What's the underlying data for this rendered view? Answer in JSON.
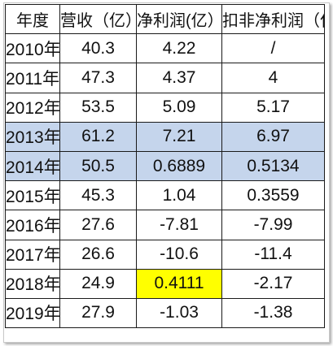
{
  "table": {
    "headers": [
      "年度",
      "营收（亿）",
      "净利润(亿）",
      "扣非净利润（亿）"
    ],
    "rows": [
      {
        "year": "2010年",
        "revenue": "40.3",
        "net_profit": "4.22",
        "deducted_net_profit": "/"
      },
      {
        "year": "2011年",
        "revenue": "47.3",
        "net_profit": "4.37",
        "deducted_net_profit": "4"
      },
      {
        "year": "2012年",
        "revenue": "53.5",
        "net_profit": "5.09",
        "deducted_net_profit": "5.17"
      },
      {
        "year": "2013年",
        "revenue": "61.2",
        "net_profit": "7.21",
        "deducted_net_profit": "6.97"
      },
      {
        "year": "2014年",
        "revenue": "50.5",
        "net_profit": "0.6889",
        "deducted_net_profit": "0.5134"
      },
      {
        "year": "2015年",
        "revenue": "45.3",
        "net_profit": "1.04",
        "deducted_net_profit": "0.3559"
      },
      {
        "year": "2016年",
        "revenue": "27.6",
        "net_profit": "-7.81",
        "deducted_net_profit": "-7.99"
      },
      {
        "year": "2017年",
        "revenue": "26.6",
        "net_profit": "-10.6",
        "deducted_net_profit": "-11.4"
      },
      {
        "year": "2018年",
        "revenue": "24.9",
        "net_profit": "0.4111",
        "deducted_net_profit": "-2.17"
      },
      {
        "year": "2019年",
        "revenue": "27.9",
        "net_profit": "-1.03",
        "deducted_net_profit": "-1.38"
      }
    ]
  },
  "colors": {
    "row_highlight_blue": "#c5d5ec",
    "cell_highlight_yellow": "#ffff00",
    "border": "#1a1a1a"
  }
}
